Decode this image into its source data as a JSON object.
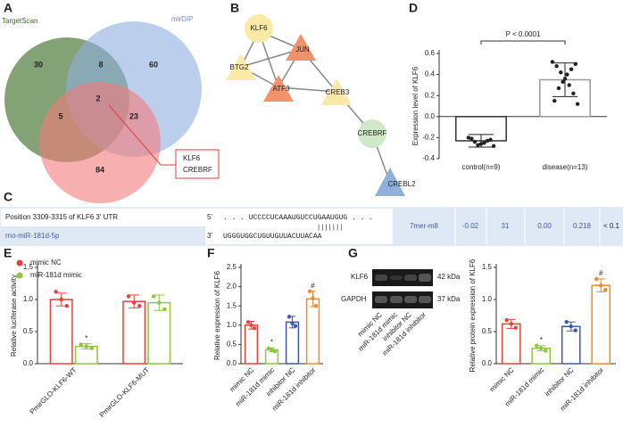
{
  "panel_labels": [
    "A",
    "B",
    "C",
    "D",
    "E",
    "F",
    "G"
  ],
  "venn": {
    "sets": [
      "TargetScan",
      "mirDIP"
    ],
    "counts": [
      30,
      8,
      60,
      2,
      5,
      23,
      84
    ],
    "callout": [
      "KLF6",
      "CREBRF"
    ]
  },
  "network": {
    "nodes": [
      "KLF6",
      "JUN",
      "BTG2",
      "ATF3",
      "CREB3",
      "CREBRF",
      "CREBL2"
    ]
  },
  "table": {
    "position": "Position 3309-3315 of KLF6  3'  UTR",
    "mirna": "rno-miR-181d-5p",
    "five": "5'",
    "three": "3'",
    "utr_seq": ". . . UCCCCUCAAAUGUCCUGAAUGUG . . .",
    "pairing": "|||||||",
    "mir_seq": "UGGGUGGCUGUUGUUACUUACAA",
    "cells": [
      "7mer-m8",
      "-0.02",
      "31",
      "0.00",
      "0.218",
      "< 0.1"
    ]
  },
  "charts": [
    {
      "type": "bar",
      "ylabel": "Expression level of KLF6",
      "annotation": "P < 0.0001",
      "categories": [
        "control(n=9)",
        "disease(n=13)"
      ],
      "ylim": [
        -0.4,
        0.6
      ],
      "yticks": [
        -0.4,
        -0.2,
        {
          "value": 0,
          "label": "0.0"
        },
        0.2,
        0.4,
        0.6
      ],
      "series": [
        {
          "colors": [
            "#333333",
            "#9a9a9a"
          ],
          "values": [
            -0.23,
            0.35
          ],
          "errors": [
            0.06,
            0.16
          ],
          "points": [
            [
              -0.2,
              -0.22,
              -0.24,
              -0.25,
              -0.26,
              -0.27,
              -0.23,
              -0.21,
              -0.28
            ],
            [
              0.52,
              0.5,
              0.48,
              0.45,
              0.42,
              0.4,
              0.36,
              0.33,
              0.3,
              0.27,
              0.22,
              0.15,
              0.12
            ]
          ]
        }
      ]
    },
    {
      "type": "bar",
      "ylabel": "Relative luciferase activity",
      "categories": [
        "PmirGLO-KLF6-WT",
        "PmirGLO-KLF6-MUT"
      ],
      "ylim": [
        0,
        1.5
      ],
      "yticks": [
        {
          "value": 0,
          "label": "0.0"
        },
        0.5,
        {
          "value": 1,
          "label": "1.0"
        },
        1.5
      ],
      "series": [
        {
          "name": "mimic NC",
          "color": "#e8413c",
          "values": [
            1.0,
            0.97
          ],
          "errors": [
            0.1,
            0.1
          ],
          "points": [
            [
              1.12,
              1.0,
              0.9
            ],
            [
              1.05,
              0.95,
              0.9
            ]
          ],
          "annotations": [
            null,
            null
          ]
        },
        {
          "name": "miR-181d mimic",
          "color": "#8dc63f",
          "values": [
            0.27,
            0.95
          ],
          "errors": [
            0.04,
            0.12
          ],
          "points": [
            [
              0.3,
              0.27,
              0.24
            ],
            [
              1.05,
              0.95,
              0.85
            ]
          ],
          "annotations": [
            "*",
            null
          ]
        }
      ]
    },
    {
      "type": "bar",
      "ylabel": "Relative expression of KLF6",
      "categories": [
        "mimic NC",
        "miR-181d mimic",
        "inhibitor NC",
        "miR-181d inhibitor"
      ],
      "ylim": [
        0,
        2.5
      ],
      "yticks": [
        {
          "value": 0,
          "label": "0.0"
        },
        0.5,
        {
          "value": 1,
          "label": "1.0"
        },
        1.5,
        {
          "value": 2,
          "label": "2.0"
        },
        2.5
      ],
      "series": [
        {
          "colors": [
            "#e8413c",
            "#8dc63f",
            "#3b5ba9",
            "#f08a24"
          ],
          "values": [
            1.0,
            0.36,
            1.08,
            1.68
          ],
          "errors": [
            0.1,
            0.05,
            0.15,
            0.2
          ],
          "points": [
            [
              1.08,
              1.0,
              0.92
            ],
            [
              0.4,
              0.36,
              0.32
            ],
            [
              1.22,
              1.05,
              0.98
            ],
            [
              1.88,
              1.7,
              1.5
            ]
          ],
          "annotations": [
            null,
            "*",
            null,
            "#"
          ]
        }
      ]
    },
    {
      "type": "bar",
      "ylabel": "Relative protein expression of KLF6",
      "blot": {
        "rows": [
          "KLF6",
          "GAPDH"
        ],
        "sizes": [
          "42 kDa",
          "37 kDa"
        ]
      },
      "categories": [
        "mimic NC",
        "miR-181d mimic",
        "inhibitor NC",
        "miR-181d inhibitor"
      ],
      "ylim": [
        0,
        1.5
      ],
      "yticks": [
        {
          "value": 0,
          "label": "0.0"
        },
        0.5,
        {
          "value": 1,
          "label": "1.0"
        },
        1.5
      ],
      "series": [
        {
          "colors": [
            "#e8413c",
            "#8dc63f",
            "#3b5ba9",
            "#f08a24"
          ],
          "values": [
            0.62,
            0.24,
            0.58,
            1.22
          ],
          "errors": [
            0.07,
            0.04,
            0.07,
            0.1
          ],
          "points": [
            [
              0.68,
              0.62,
              0.56
            ],
            [
              0.28,
              0.24,
              0.2
            ],
            [
              0.65,
              0.58,
              0.52
            ],
            [
              1.32,
              1.22,
              1.15
            ]
          ],
          "annotations": [
            null,
            "*",
            null,
            "#"
          ]
        }
      ]
    }
  ]
}
